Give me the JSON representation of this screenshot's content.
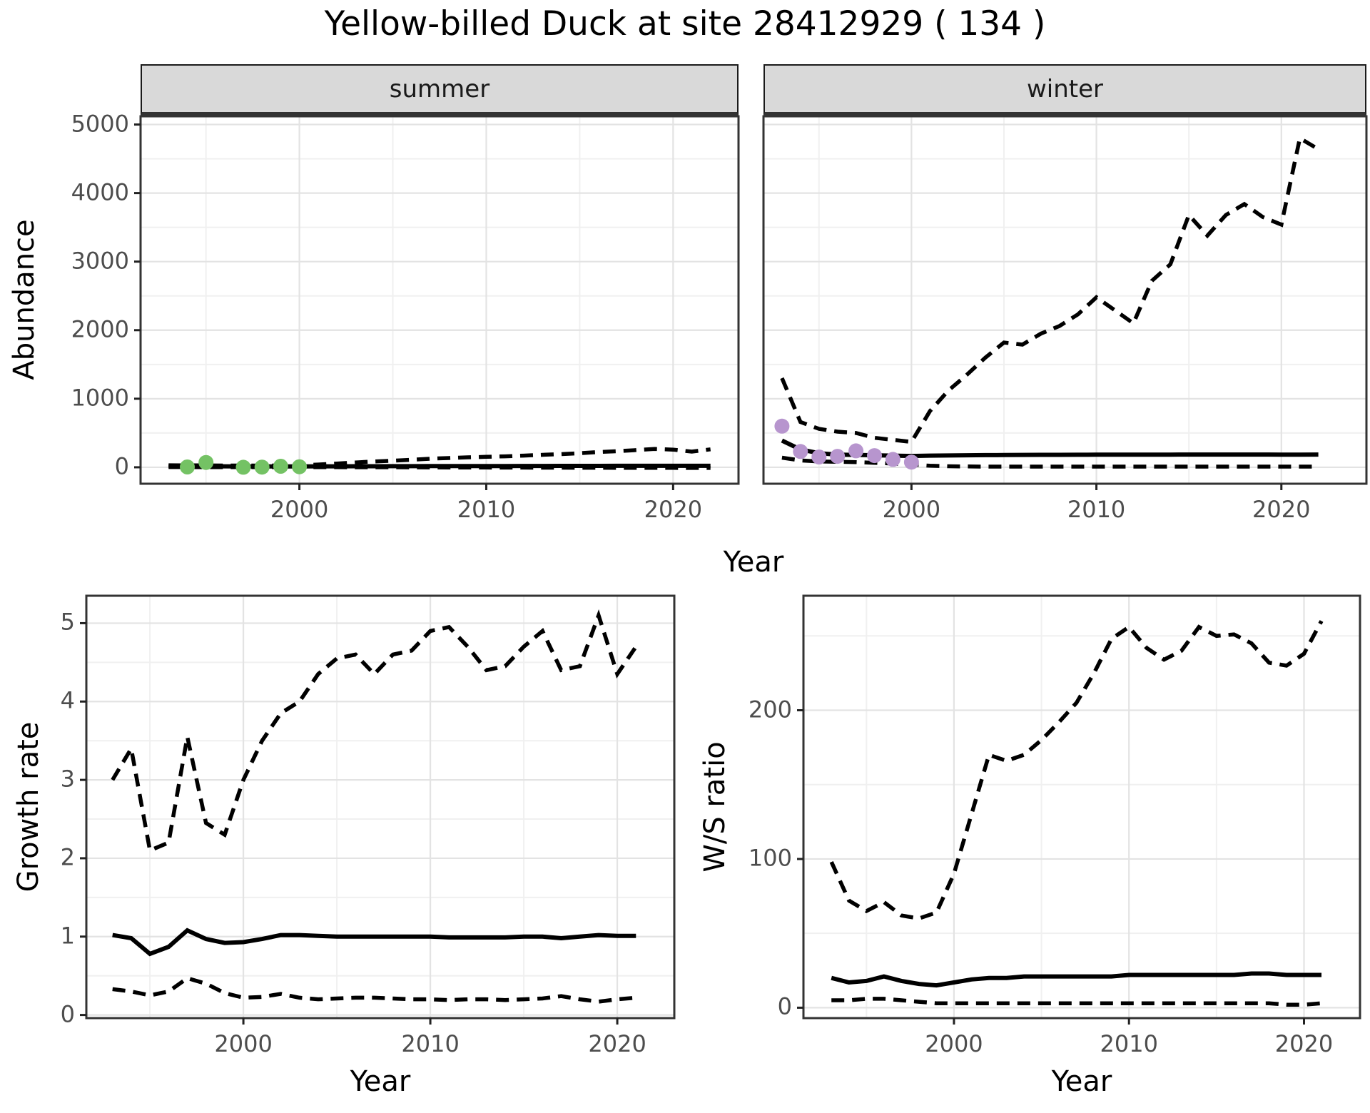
{
  "title": "Yellow-billed Duck at site 28412929 ( 134 )",
  "facets": [
    "summer",
    "winter"
  ],
  "labels": {
    "year": "Year",
    "abundance": "Abundance",
    "growth": "Growth rate",
    "ws": "W/S ratio"
  },
  "colors": {
    "summer_points": "#74C264",
    "winter_points": "#B795CE",
    "line": "#000000",
    "strip_bg": "#D9D9D9",
    "grid_major": "#E3E3E3",
    "grid_minor": "#F0F0F0",
    "panel_border": "#333333",
    "tick_text": "#4D4D4D"
  },
  "chart_data": [
    {
      "type": "line",
      "name": "abundance-summer",
      "facet": "summer",
      "xlabel": "Year",
      "ylabel": "Abundance",
      "xlim": [
        1991.5,
        2023.5
      ],
      "ylim": [
        -240,
        5120
      ],
      "xticks": [
        2000,
        2010,
        2020
      ],
      "xminor": [
        1995,
        2005,
        2015
      ],
      "yticks": [
        0,
        1000,
        2000,
        3000,
        4000,
        5000
      ],
      "yminor": [
        500,
        1500,
        2500,
        3500,
        4500
      ],
      "show_ylabels": true,
      "years": [
        1993,
        1994,
        1995,
        1996,
        1997,
        1998,
        1999,
        2000,
        2001,
        2002,
        2003,
        2004,
        2005,
        2006,
        2007,
        2008,
        2009,
        2010,
        2011,
        2012,
        2013,
        2014,
        2015,
        2016,
        2017,
        2018,
        2019,
        2020,
        2021,
        2022
      ],
      "series": [
        {
          "name": "upper-ci",
          "style": "dashed",
          "values": [
            30,
            28,
            27,
            25,
            25,
            24,
            25,
            28,
            40,
            55,
            70,
            85,
            95,
            110,
            125,
            135,
            145,
            152,
            160,
            170,
            182,
            192,
            205,
            222,
            235,
            250,
            268,
            258,
            228,
            262
          ]
        },
        {
          "name": "fit",
          "style": "solid",
          "values": [
            18,
            16,
            15,
            14,
            13,
            13,
            13,
            13,
            14,
            14,
            15,
            15,
            16,
            16,
            17,
            17,
            18,
            18,
            18,
            19,
            19,
            20,
            20,
            20,
            21,
            21,
            21,
            21,
            21,
            21
          ]
        },
        {
          "name": "lower-ci",
          "style": "dashed",
          "values": [
            4,
            3,
            3,
            2,
            2,
            2,
            2,
            2,
            1,
            1,
            0,
            0,
            0,
            -1,
            -2,
            -3,
            -4,
            -4,
            -5,
            -5,
            -6,
            -6,
            -7,
            -7,
            -8,
            -8,
            -9,
            -9,
            -10,
            -10
          ]
        }
      ],
      "points": {
        "name": "observed-summer",
        "color": "#74C264",
        "x": [
          1994,
          1995,
          1997,
          1998,
          1999,
          2000
        ],
        "y": [
          5,
          70,
          0,
          3,
          15,
          8
        ]
      }
    },
    {
      "type": "line",
      "name": "abundance-winter",
      "facet": "winter",
      "xlabel": "Year",
      "ylabel": "Abundance",
      "xlim": [
        1992.0,
        2024.6
      ],
      "ylim": [
        -240,
        5120
      ],
      "xticks": [
        2000,
        2010,
        2020
      ],
      "xminor": [
        1995,
        2005,
        2015
      ],
      "yticks": [
        0,
        1000,
        2000,
        3000,
        4000,
        5000
      ],
      "yminor": [
        500,
        1500,
        2500,
        3500,
        4500
      ],
      "show_ylabels": false,
      "years": [
        1993,
        1994,
        1995,
        1996,
        1997,
        1998,
        1999,
        2000,
        2001,
        2002,
        2003,
        2004,
        2005,
        2006,
        2007,
        2008,
        2009,
        2010,
        2011,
        2012,
        2013,
        2014,
        2015,
        2016,
        2017,
        2018,
        2019,
        2020,
        2021,
        2022
      ],
      "series": [
        {
          "name": "upper-ci",
          "style": "dashed",
          "values": [
            1300,
            660,
            560,
            520,
            500,
            430,
            400,
            370,
            820,
            1120,
            1350,
            1600,
            1820,
            1790,
            1950,
            2060,
            2230,
            2480,
            2290,
            2100,
            2720,
            2960,
            3680,
            3380,
            3680,
            3840,
            3650,
            3540,
            4800,
            4640
          ]
        },
        {
          "name": "fit",
          "style": "solid",
          "values": [
            390,
            260,
            205,
            185,
            180,
            175,
            170,
            165,
            170,
            172,
            175,
            177,
            178,
            180,
            181,
            182,
            183,
            184,
            184,
            185,
            185,
            185,
            186,
            186,
            186,
            186,
            186,
            185,
            185,
            186
          ]
        },
        {
          "name": "lower-ci",
          "style": "dashed",
          "values": [
            140,
            100,
            85,
            80,
            75,
            65,
            55,
            40,
            22,
            15,
            12,
            10,
            10,
            10,
            10,
            10,
            10,
            10,
            10,
            10,
            10,
            10,
            10,
            10,
            10,
            10,
            10,
            10,
            10,
            10
          ]
        }
      ],
      "points": {
        "name": "observed-winter",
        "color": "#B795CE",
        "x": [
          1993,
          1994,
          1995,
          1996,
          1997,
          1998,
          1999,
          2000
        ],
        "y": [
          600,
          230,
          150,
          160,
          240,
          170,
          115,
          75
        ]
      }
    },
    {
      "type": "line",
      "name": "growth-rate",
      "facet": "",
      "xlabel": "Year",
      "ylabel": "Growth rate",
      "xlim": [
        1991.6,
        2023.05
      ],
      "ylim": [
        -0.04,
        5.35
      ],
      "xticks": [
        2000,
        2010,
        2020
      ],
      "xminor": [
        1995,
        2005,
        2015
      ],
      "yticks": [
        0,
        1,
        2,
        3,
        4,
        5
      ],
      "yminor": [
        0.5,
        1.5,
        2.5,
        3.5,
        4.5
      ],
      "show_ylabels": true,
      "years": [
        1993,
        1994,
        1995,
        1996,
        1997,
        1998,
        1999,
        2000,
        2001,
        2002,
        2003,
        2004,
        2005,
        2006,
        2007,
        2008,
        2009,
        2010,
        2011,
        2012,
        2013,
        2014,
        2015,
        2016,
        2017,
        2018,
        2019,
        2020,
        2021
      ],
      "series": [
        {
          "name": "upper-ci",
          "style": "dashed",
          "values": [
            3.0,
            3.4,
            2.1,
            2.2,
            3.55,
            2.45,
            2.3,
            3.0,
            3.5,
            3.85,
            4.0,
            4.35,
            4.55,
            4.6,
            4.35,
            4.6,
            4.65,
            4.9,
            4.95,
            4.7,
            4.4,
            4.45,
            4.7,
            4.9,
            4.4,
            4.45,
            5.1,
            4.35,
            4.7
          ]
        },
        {
          "name": "fit",
          "style": "solid",
          "values": [
            1.02,
            0.98,
            0.78,
            0.87,
            1.08,
            0.97,
            0.92,
            0.93,
            0.97,
            1.02,
            1.02,
            1.01,
            1.0,
            1.0,
            1.0,
            1.0,
            1.0,
            1.0,
            0.99,
            0.99,
            0.99,
            0.99,
            1.0,
            1.0,
            0.98,
            1.0,
            1.02,
            1.01,
            1.01
          ]
        },
        {
          "name": "lower-ci",
          "style": "dashed",
          "values": [
            0.33,
            0.3,
            0.25,
            0.3,
            0.47,
            0.4,
            0.28,
            0.22,
            0.23,
            0.27,
            0.22,
            0.2,
            0.21,
            0.22,
            0.22,
            0.21,
            0.2,
            0.2,
            0.19,
            0.2,
            0.2,
            0.19,
            0.2,
            0.21,
            0.24,
            0.2,
            0.17,
            0.2,
            0.22
          ]
        }
      ],
      "points": null
    },
    {
      "type": "line",
      "name": "ws-ratio",
      "facet": "",
      "xlabel": "Year",
      "ylabel": "W/S ratio",
      "xlim": [
        1991.4,
        2023.2
      ],
      "ylim": [
        -7,
        277
      ],
      "xticks": [
        2000,
        2010,
        2020
      ],
      "xminor": [
        1995,
        2005,
        2015
      ],
      "yticks": [
        0,
        100,
        200
      ],
      "yminor": [
        50,
        150,
        250
      ],
      "show_ylabels": true,
      "years": [
        1993,
        1994,
        1995,
        1996,
        1997,
        1998,
        1999,
        2000,
        2001,
        2002,
        2003,
        2004,
        2005,
        2006,
        2007,
        2008,
        2009,
        2010,
        2011,
        2012,
        2013,
        2014,
        2015,
        2016,
        2017,
        2018,
        2019,
        2020,
        2021
      ],
      "series": [
        {
          "name": "upper-ci",
          "style": "dashed",
          "values": [
            98,
            72,
            65,
            71,
            62,
            60,
            64,
            90,
            130,
            170,
            166,
            170,
            180,
            192,
            205,
            225,
            248,
            256,
            242,
            234,
            240,
            256,
            250,
            251,
            245,
            232,
            230,
            238,
            260
          ]
        },
        {
          "name": "fit",
          "style": "solid",
          "values": [
            20,
            17,
            18,
            21,
            18,
            16,
            15,
            17,
            19,
            20,
            20,
            21,
            21,
            21,
            21,
            21,
            21,
            22,
            22,
            22,
            22,
            22,
            22,
            22,
            23,
            23,
            22,
            22,
            22
          ]
        },
        {
          "name": "lower-ci",
          "style": "dashed",
          "values": [
            5,
            5,
            6,
            6,
            5,
            4,
            3,
            3,
            3,
            3,
            3,
            3,
            3,
            3,
            3,
            3,
            3,
            3,
            3,
            3,
            3,
            3,
            3,
            3,
            3,
            3,
            2,
            2,
            3
          ]
        }
      ],
      "points": null
    }
  ]
}
